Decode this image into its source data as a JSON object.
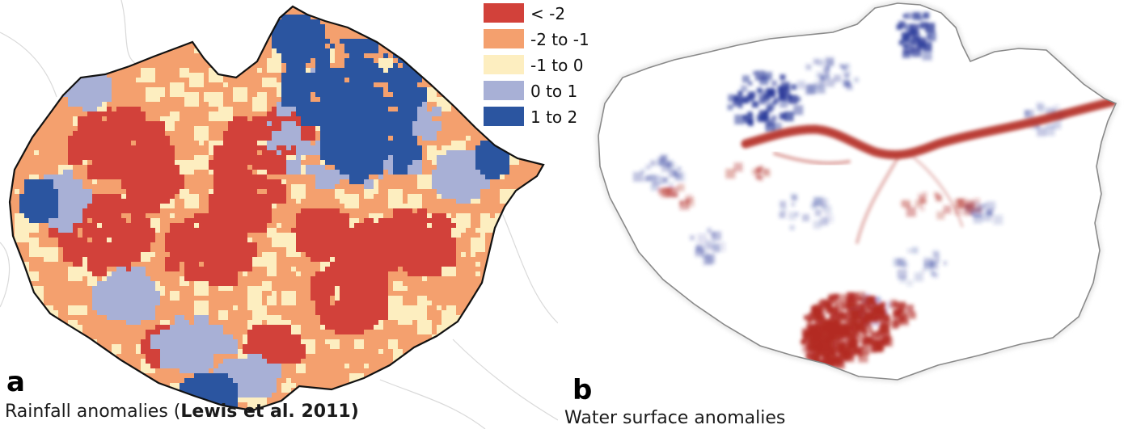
{
  "panels": [
    {
      "letter": "a",
      "caption_prefix": "Rainfall anomalies (",
      "caption_bold": "Lewis et al. 2011",
      "caption_suffix": ")"
    },
    {
      "letter": "b",
      "caption": "Water surface anomalies"
    }
  ],
  "legend": [
    {
      "label": "< -2",
      "color": "#d2413a"
    },
    {
      "label": "-2 to -1",
      "color": "#f4a06e"
    },
    {
      "label": "-1 to 0",
      "color": "#fdeec0"
    },
    {
      "label": "0 to 1",
      "color": "#a8b0d6"
    },
    {
      "label": "1 to 2",
      "color": "#2b55a0"
    }
  ],
  "colors": {
    "map_boundary": "#111111",
    "water_dry": "#b32a24",
    "water_wet": "#2a3a9a",
    "background_lines": "#d9d9d9"
  }
}
